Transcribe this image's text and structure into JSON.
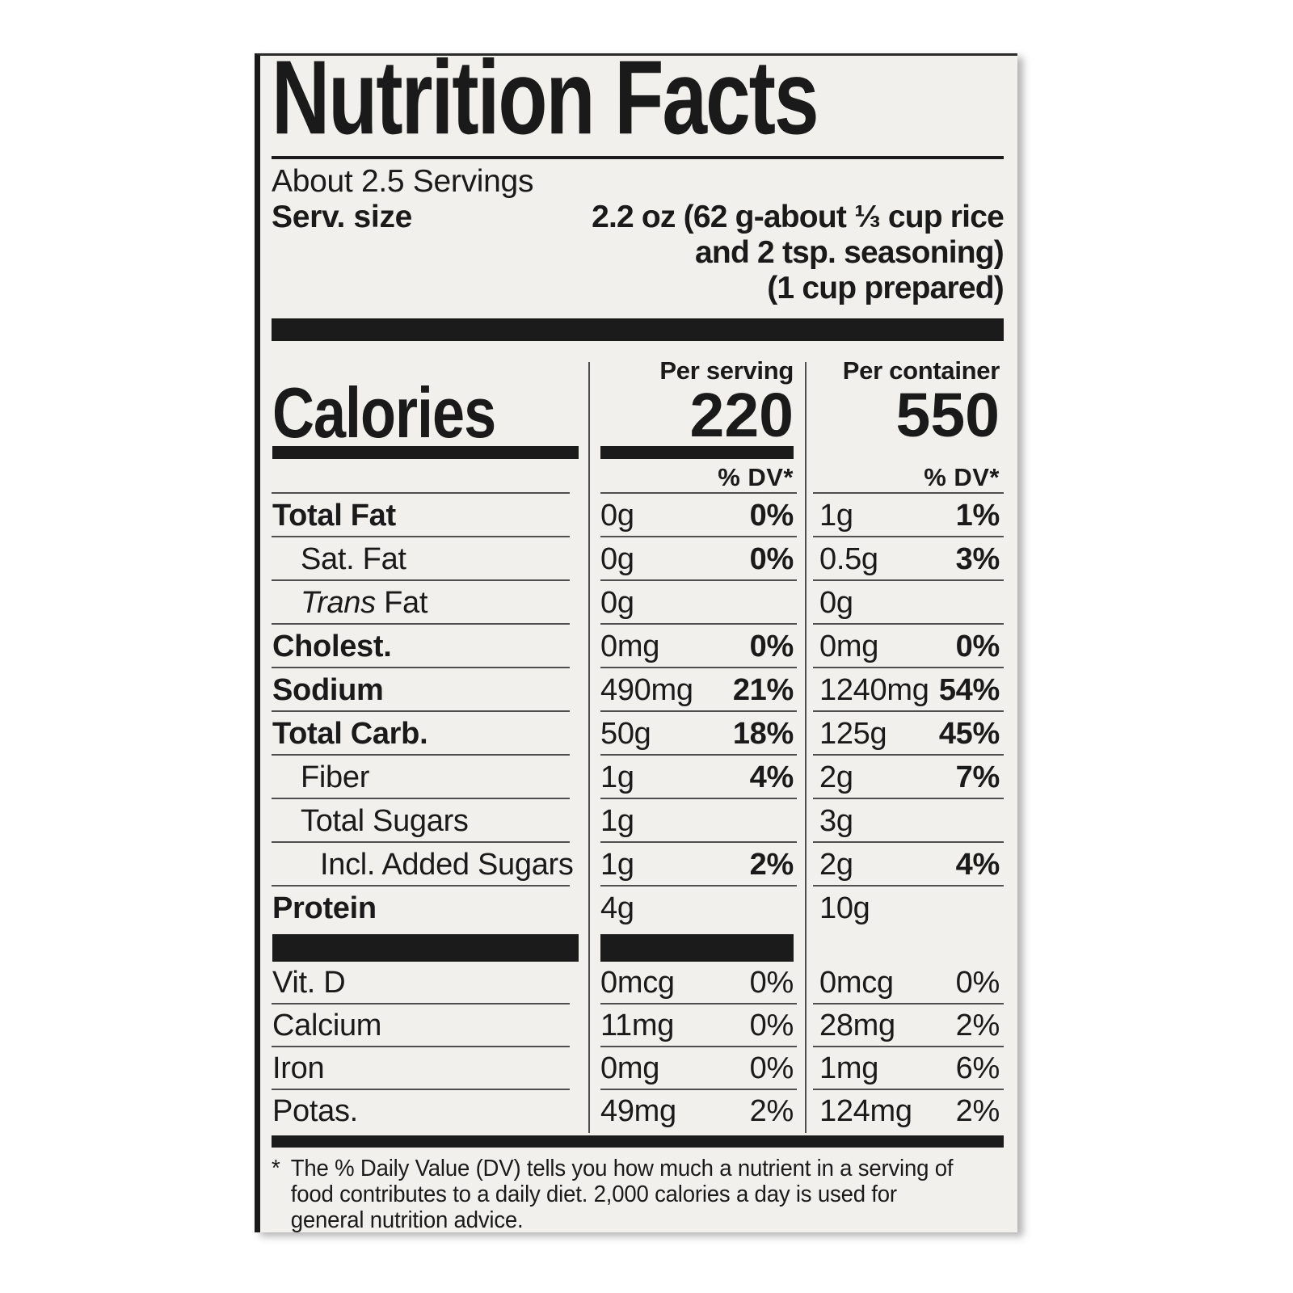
{
  "label": {
    "title": "Nutrition Facts",
    "servings_per_container": "About 2.5 Servings",
    "serving_size_label": "Serv. size",
    "serving_size_lines": [
      "2.2 oz (62 g-about ⅓ cup rice",
      "and 2 tsp. seasoning)",
      "(1 cup prepared)"
    ],
    "calories": {
      "label": "Calories",
      "per_serving": {
        "header": "Per serving",
        "value": "220"
      },
      "per_container": {
        "header": "Per container",
        "value": "550"
      },
      "dv_header": "% DV*"
    },
    "nutrients": [
      {
        "name": "Total Fat",
        "bold": true,
        "indent": 0,
        "serving": {
          "amount": "0g",
          "dv": "0%"
        },
        "container": {
          "amount": "1g",
          "dv": "1%"
        }
      },
      {
        "name": "Sat. Fat",
        "bold": false,
        "indent": 1,
        "serving": {
          "amount": "0g",
          "dv": "0%"
        },
        "container": {
          "amount": "0.5g",
          "dv": "3%"
        }
      },
      {
        "name": " Fat",
        "italic_prefix": "Trans",
        "bold": false,
        "indent": 1,
        "serving": {
          "amount": "0g",
          "dv": ""
        },
        "container": {
          "amount": "0g",
          "dv": ""
        }
      },
      {
        "name": "Cholest.",
        "bold": true,
        "indent": 0,
        "serving": {
          "amount": "0mg",
          "dv": "0%"
        },
        "container": {
          "amount": "0mg",
          "dv": "0%"
        }
      },
      {
        "name": "Sodium",
        "bold": true,
        "indent": 0,
        "serving": {
          "amount": "490mg",
          "dv": "21%"
        },
        "container": {
          "amount": "1240mg",
          "dv": "54%"
        }
      },
      {
        "name": "Total Carb.",
        "bold": true,
        "indent": 0,
        "serving": {
          "amount": "50g",
          "dv": "18%"
        },
        "container": {
          "amount": "125g",
          "dv": "45%"
        }
      },
      {
        "name": "Fiber",
        "bold": false,
        "indent": 1,
        "serving": {
          "amount": "1g",
          "dv": "4%"
        },
        "container": {
          "amount": "2g",
          "dv": "7%"
        }
      },
      {
        "name": "Total Sugars",
        "bold": false,
        "indent": 1,
        "serving": {
          "amount": "1g",
          "dv": ""
        },
        "container": {
          "amount": "3g",
          "dv": ""
        }
      },
      {
        "name": "Incl. Added Sugars",
        "bold": false,
        "indent": 2,
        "serving": {
          "amount": "1g",
          "dv": "2%"
        },
        "container": {
          "amount": "2g",
          "dv": "4%"
        }
      },
      {
        "name": "Protein",
        "bold": true,
        "indent": 0,
        "no_line": true,
        "serving": {
          "amount": "4g",
          "dv": ""
        },
        "container": {
          "amount": "10g",
          "dv": ""
        }
      }
    ],
    "vitamins": [
      {
        "name": "Vit. D",
        "serving": {
          "amount": "0mcg",
          "dv": "0%"
        },
        "container": {
          "amount": "0mcg",
          "dv": "0%"
        }
      },
      {
        "name": "Calcium",
        "serving": {
          "amount": "11mg",
          "dv": "0%"
        },
        "container": {
          "amount": "28mg",
          "dv": "2%"
        }
      },
      {
        "name": "Iron",
        "serving": {
          "amount": "0mg",
          "dv": "0%"
        },
        "container": {
          "amount": "1mg",
          "dv": "6%"
        }
      },
      {
        "name": "Potas.",
        "no_line": true,
        "serving": {
          "amount": "49mg",
          "dv": "2%"
        },
        "container": {
          "amount": "124mg",
          "dv": "2%"
        }
      }
    ],
    "footnote_marker": "*",
    "footnote_lines": [
      "The % Daily Value (DV) tells you how much a nutrient in a serving of",
      "food contributes to a daily diet. 2,000 calories a day is used for",
      "general nutrition advice."
    ]
  },
  "colors": {
    "card_bg": "#f1f0ed",
    "text": "#1a1a1a",
    "bar": "#1b1b1b",
    "rule": "#4f4f4f"
  }
}
